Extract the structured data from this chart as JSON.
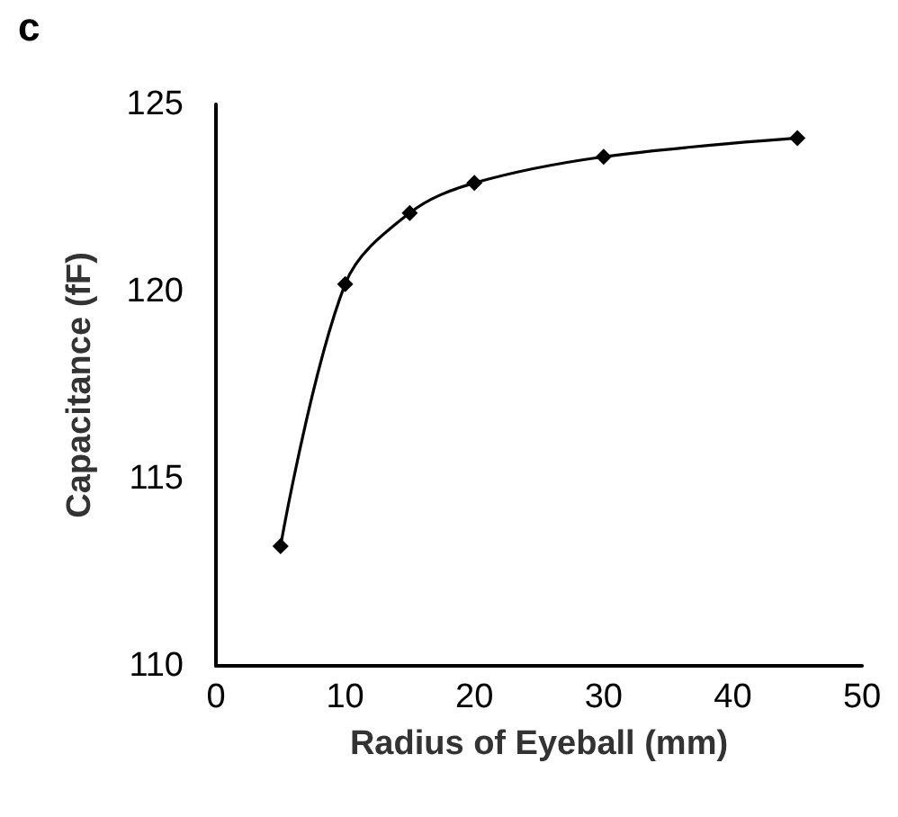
{
  "chart_data": {
    "type": "line",
    "xlabel": "Radius of Eyeball (mm)",
    "ylabel": "Capacitance (fF)",
    "annotations": [
      "c"
    ],
    "x": [
      5,
      10,
      15,
      20,
      30,
      45
    ],
    "series": [
      {
        "color": "#000000",
        "values": [
          113.2,
          120.2,
          122.1,
          122.9,
          123.6,
          124.1
        ]
      }
    ],
    "xlim": [
      0,
      50
    ],
    "xticks": [
      0,
      10,
      20,
      30,
      40,
      50
    ],
    "ylim": [
      110,
      125
    ],
    "yticks": [
      110,
      115,
      120,
      125
    ],
    "grid": false,
    "marker": "diamond",
    "line_style": "solid"
  }
}
